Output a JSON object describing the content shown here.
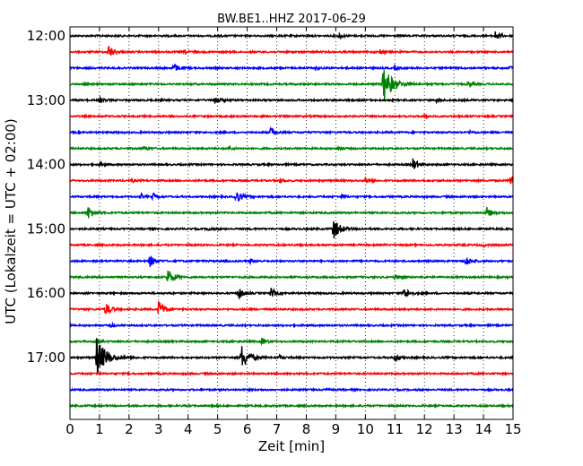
{
  "chart_data": {
    "type": "line",
    "title": "BW.BE1..HHZ 2017-06-29",
    "xlabel": "Zeit  [min]",
    "ylabel": "UTC (Lokalzeit = UTC + 02:00)",
    "xlim": [
      0,
      15
    ],
    "x_ticks": [
      "0",
      "1",
      "2",
      "3",
      "4",
      "5",
      "6",
      "7",
      "8",
      "9",
      "10",
      "11",
      "12",
      "13",
      "14",
      "15"
    ],
    "y_tick_labels": [
      "12:00",
      "13:00",
      "14:00",
      "15:00",
      "16:00",
      "17:00"
    ],
    "grid": "vertical dotted",
    "line_colors": [
      "#000000",
      "#ff0000",
      "#0000ff",
      "#008000"
    ],
    "series": [
      {
        "start": "12:00",
        "events": [
          {
            "x": 9.1,
            "a": 0.25
          },
          {
            "x": 14.4,
            "a": 0.35
          }
        ]
      },
      {
        "start": "12:15",
        "events": [
          {
            "x": 1.3,
            "a": 0.6
          },
          {
            "x": 3.9,
            "a": 0.15
          },
          {
            "x": 10.5,
            "a": 0.2
          }
        ]
      },
      {
        "start": "12:30",
        "events": [
          {
            "x": 3.5,
            "a": 0.45
          },
          {
            "x": 8.3,
            "a": 0.2
          },
          {
            "x": 11.0,
            "a": 0.2
          },
          {
            "x": 14.9,
            "a": 0.2
          }
        ]
      },
      {
        "start": "12:45",
        "events": [
          {
            "x": 10.6,
            "a": 1.6
          },
          {
            "x": 13.5,
            "a": 0.3
          }
        ]
      },
      {
        "start": "13:00",
        "events": [
          {
            "x": 1.0,
            "a": 0.2
          },
          {
            "x": 4.9,
            "a": 0.4
          },
          {
            "x": 12.4,
            "a": 0.15
          }
        ]
      },
      {
        "start": "13:15",
        "events": [
          {
            "x": 12.0,
            "a": 0.15
          }
        ]
      },
      {
        "start": "13:30",
        "events": [
          {
            "x": 6.8,
            "a": 0.45
          },
          {
            "x": 13.5,
            "a": 0.15
          }
        ]
      },
      {
        "start": "13:45",
        "events": [
          {
            "x": 2.5,
            "a": 0.2
          },
          {
            "x": 5.4,
            "a": 0.15
          },
          {
            "x": 9.1,
            "a": 0.15
          }
        ]
      },
      {
        "start": "14:00",
        "events": [
          {
            "x": 1.0,
            "a": 0.2
          },
          {
            "x": 11.6,
            "a": 0.55
          }
        ]
      },
      {
        "start": "14:15",
        "events": [
          {
            "x": 2.1,
            "a": 0.15
          },
          {
            "x": 7.1,
            "a": 0.2
          },
          {
            "x": 10.0,
            "a": 0.25
          },
          {
            "x": 14.9,
            "a": 0.45
          }
        ]
      },
      {
        "start": "14:30",
        "events": [
          {
            "x": 2.4,
            "a": 0.2
          },
          {
            "x": 2.8,
            "a": 0.3
          },
          {
            "x": 5.6,
            "a": 0.65
          },
          {
            "x": 9.2,
            "a": 0.2
          }
        ]
      },
      {
        "start": "14:45",
        "events": [
          {
            "x": 0.6,
            "a": 0.6
          },
          {
            "x": 14.1,
            "a": 0.5
          }
        ]
      },
      {
        "start": "15:00",
        "events": [
          {
            "x": 4.7,
            "a": 0.15
          },
          {
            "x": 8.9,
            "a": 1.0
          }
        ]
      },
      {
        "start": "15:15",
        "events": [
          {
            "x": 14.0,
            "a": 0.1
          }
        ]
      },
      {
        "start": "15:30",
        "events": [
          {
            "x": 2.7,
            "a": 0.55
          },
          {
            "x": 6.1,
            "a": 0.2
          },
          {
            "x": 13.4,
            "a": 0.45
          }
        ]
      },
      {
        "start": "15:45",
        "events": [
          {
            "x": 3.3,
            "a": 0.75
          },
          {
            "x": 11.0,
            "a": 0.2
          }
        ]
      },
      {
        "start": "16:00",
        "events": [
          {
            "x": 5.7,
            "a": 0.55
          },
          {
            "x": 6.8,
            "a": 0.45
          },
          {
            "x": 11.3,
            "a": 0.55
          }
        ]
      },
      {
        "start": "16:15",
        "events": [
          {
            "x": 1.2,
            "a": 0.6
          },
          {
            "x": 3.0,
            "a": 0.75
          }
        ]
      },
      {
        "start": "16:30",
        "events": [
          {
            "x": 1.4,
            "a": 0.15
          }
        ]
      },
      {
        "start": "16:45",
        "events": [
          {
            "x": 0.9,
            "a": 0.25
          },
          {
            "x": 6.5,
            "a": 0.3
          }
        ]
      },
      {
        "start": "17:00",
        "events": [
          {
            "x": 0.9,
            "a": 1.7
          },
          {
            "x": 5.8,
            "a": 1.1
          },
          {
            "x": 7.1,
            "a": 0.15
          },
          {
            "x": 11.0,
            "a": 0.4
          }
        ]
      },
      {
        "start": "17:15",
        "events": []
      },
      {
        "start": "17:30",
        "events": [
          {
            "x": 8.7,
            "a": 0.1
          }
        ]
      },
      {
        "start": "17:45",
        "events": []
      }
    ]
  }
}
